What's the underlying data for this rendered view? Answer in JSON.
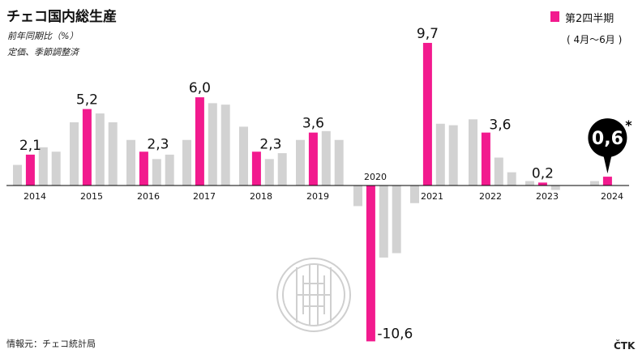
{
  "title": "チェコ国内総生産",
  "subtitle_1": "前年同期比（%）",
  "subtitle_2": "定価、季節調整済",
  "legend": {
    "label": "第2四半期",
    "period": "( 4月〜6月 )"
  },
  "source": "情報元：チェコ統計局",
  "credit": "ČTK",
  "colors": {
    "highlight": "#f21a8e",
    "other": "#d2d2d2",
    "axis": "#000000",
    "watermark": "#cfcfcf"
  },
  "chart_data": {
    "type": "bar",
    "title": "チェコ国内総生産",
    "ylabel": "前年同期比（%）",
    "highlight_quarter": "Q2",
    "years": [
      "2014",
      "2015",
      "2016",
      "2017",
      "2018",
      "2019",
      "2020",
      "2021",
      "2022",
      "2023",
      "2024"
    ],
    "series": [
      {
        "year": "2014",
        "values": [
          1.4,
          2.1,
          2.6,
          2.3
        ]
      },
      {
        "year": "2015",
        "values": [
          4.3,
          5.2,
          4.9,
          4.3
        ]
      },
      {
        "year": "2016",
        "values": [
          3.1,
          2.3,
          1.8,
          2.1
        ]
      },
      {
        "year": "2017",
        "values": [
          3.1,
          6.0,
          5.6,
          5.5
        ]
      },
      {
        "year": "2018",
        "values": [
          4.0,
          2.3,
          1.8,
          2.2
        ]
      },
      {
        "year": "2019",
        "values": [
          3.1,
          3.6,
          3.7,
          3.1
        ]
      },
      {
        "year": "2020",
        "values": [
          -1.4,
          -10.6,
          -4.9,
          -4.6
        ]
      },
      {
        "year": "2021",
        "values": [
          -1.2,
          9.7,
          4.2,
          4.1
        ]
      },
      {
        "year": "2022",
        "values": [
          4.5,
          3.6,
          1.9,
          0.9
        ]
      },
      {
        "year": "2023",
        "values": [
          0.3,
          0.2,
          -0.3
        ]
      },
      {
        "year": "2024",
        "values": [
          0.3,
          0.6
        ]
      }
    ],
    "highlight_labels": [
      "2,1",
      "5,2",
      "2,3",
      "6,0",
      "2,3",
      "3,6",
      "-10,6",
      "9,7",
      "3,6",
      "0,2",
      "0,6"
    ],
    "latest_marker": "*",
    "ylim": [
      -11,
      10
    ]
  }
}
